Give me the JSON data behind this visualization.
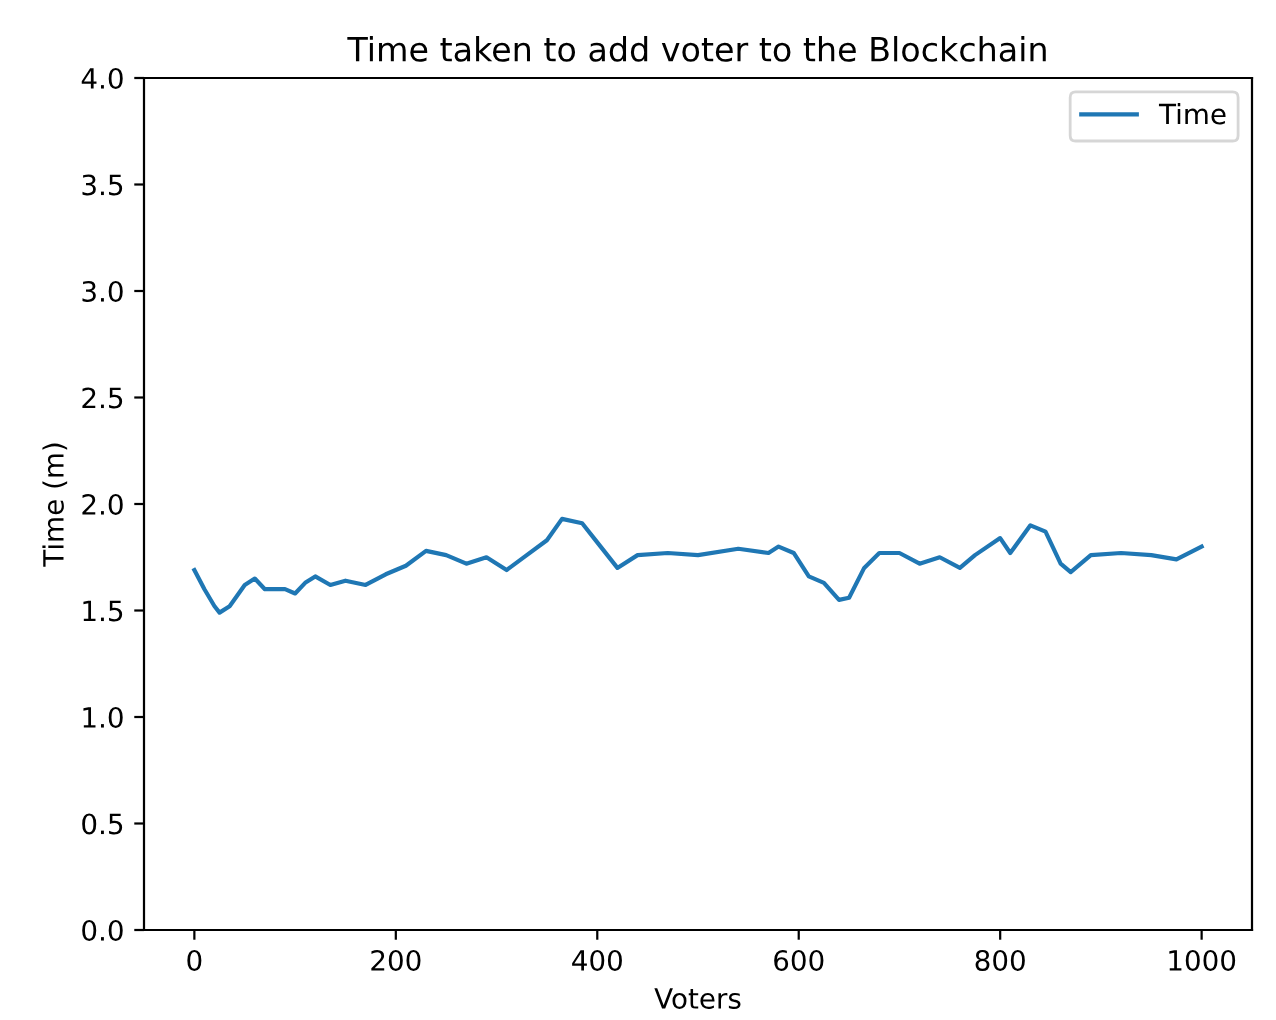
{
  "chart_data": {
    "type": "line",
    "title": "Time taken to add voter to the Blockchain",
    "xlabel": "Voters",
    "ylabel": "Time (m)",
    "xlim": [
      -50,
      1050
    ],
    "xticks": [
      0,
      200,
      400,
      600,
      800,
      1000
    ],
    "ylim": [
      0,
      4
    ],
    "yticks": [
      {
        "value": 0,
        "label": "0.0"
      },
      0.5,
      {
        "value": 1,
        "label": "1.0"
      },
      1.5,
      {
        "value": 2,
        "label": "2.0"
      },
      2.5,
      {
        "value": 3,
        "label": "3.0"
      },
      3.5,
      {
        "value": 4,
        "label": "4.0"
      }
    ],
    "legend": "top right",
    "grid": false,
    "series": [
      {
        "name": "Time",
        "color": "#1f77b4",
        "x": [
          0,
          10,
          20,
          25,
          35,
          50,
          60,
          70,
          90,
          100,
          110,
          120,
          135,
          150,
          170,
          190,
          210,
          230,
          250,
          270,
          290,
          310,
          330,
          350,
          365,
          385,
          400,
          420,
          440,
          470,
          500,
          540,
          570,
          580,
          595,
          610,
          625,
          640,
          650,
          665,
          680,
          700,
          720,
          740,
          760,
          775,
          800,
          810,
          830,
          845,
          860,
          870,
          890,
          920,
          950,
          975,
          1000
        ],
        "values": [
          1.69,
          1.6,
          1.52,
          1.49,
          1.52,
          1.62,
          1.65,
          1.6,
          1.6,
          1.58,
          1.63,
          1.66,
          1.62,
          1.64,
          1.62,
          1.67,
          1.71,
          1.78,
          1.76,
          1.72,
          1.75,
          1.69,
          1.76,
          1.83,
          1.93,
          1.91,
          1.82,
          1.7,
          1.76,
          1.77,
          1.76,
          1.79,
          1.77,
          1.8,
          1.77,
          1.66,
          1.63,
          1.55,
          1.56,
          1.7,
          1.77,
          1.77,
          1.72,
          1.75,
          1.7,
          1.76,
          1.84,
          1.77,
          1.9,
          1.87,
          1.72,
          1.68,
          1.76,
          1.77,
          1.76,
          1.74,
          1.8
        ]
      }
    ]
  }
}
